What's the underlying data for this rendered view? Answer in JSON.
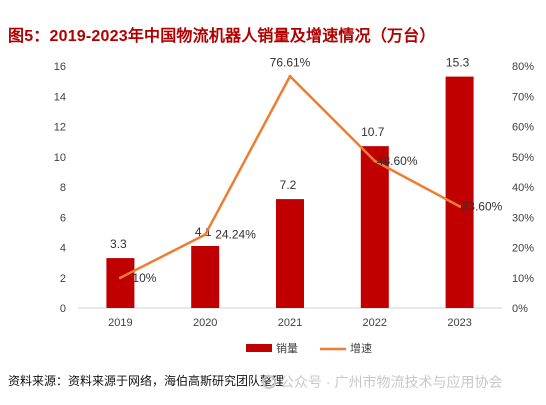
{
  "figure": {
    "caption_label": "图5：",
    "title_text": "2019-2023年中国物流机器人销量及增速情况（万台）"
  },
  "chart_data": {
    "type": "bar",
    "categories": [
      "2019",
      "2020",
      "2021",
      "2022",
      "2023"
    ],
    "series": [
      {
        "name": "销量",
        "kind": "bar",
        "axis": "left",
        "values": [
          3.3,
          4.1,
          7.2,
          10.7,
          15.3
        ],
        "labels": [
          "3.3",
          "4.1",
          "7.2",
          "10.7",
          "15.3"
        ],
        "color": "#c00000"
      },
      {
        "name": "增速",
        "kind": "line",
        "axis": "right",
        "values": [
          10,
          24.24,
          76.61,
          48.6,
          33.6
        ],
        "labels": [
          "10%",
          "24.24%",
          "76.61%",
          "48.60%",
          "33.60%"
        ],
        "color": "#ed7d31"
      }
    ],
    "y_left": {
      "min": 0,
      "max": 16,
      "ticks": [
        "0",
        "2",
        "4",
        "6",
        "8",
        "10",
        "12",
        "14",
        "16"
      ]
    },
    "y_right": {
      "min": 0,
      "max": 80,
      "ticks": [
        "0%",
        "10%",
        "20%",
        "30%",
        "40%",
        "50%",
        "60%",
        "70%",
        "80%"
      ]
    },
    "legend_position": "bottom",
    "grid": false
  },
  "footer": {
    "source": "资料来源：资料来源于网络，海伯高斯研究团队整理"
  },
  "watermark": {
    "text": "公众号 · 广州市物流技术与应用协会"
  }
}
